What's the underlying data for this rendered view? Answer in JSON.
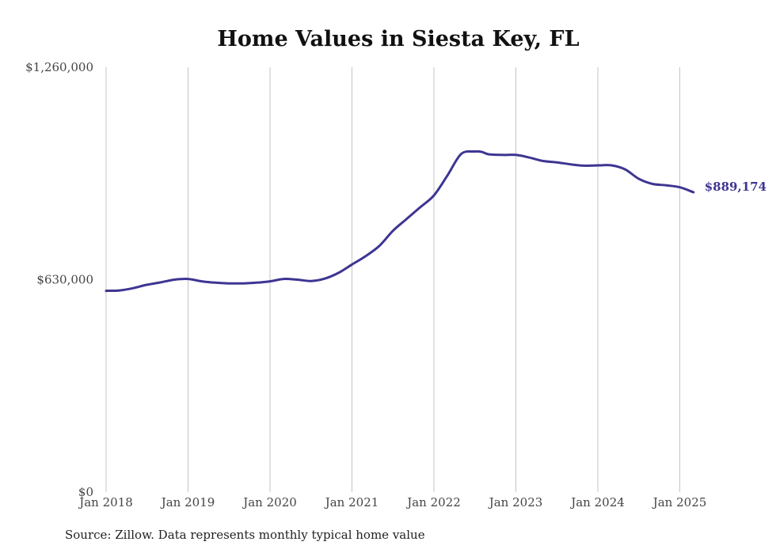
{
  "chart_data": {
    "type": "line",
    "title": "Home Values in Siesta Key, FL",
    "xlabel": "",
    "ylabel": "",
    "ylim": [
      0,
      1260000
    ],
    "y_ticks": [
      0,
      630000,
      1260000
    ],
    "y_tick_labels": [
      "$0",
      "$630,000",
      "$1,260,000"
    ],
    "x_range": [
      "2018-01",
      "2025-03"
    ],
    "x_ticks": [
      "2018-01",
      "2019-01",
      "2020-01",
      "2021-01",
      "2022-01",
      "2023-01",
      "2024-01",
      "2025-01"
    ],
    "x_tick_labels": [
      "Jan 2018",
      "Jan 2019",
      "Jan 2020",
      "Jan 2021",
      "Jan 2022",
      "Jan 2023",
      "Jan 2024",
      "Jan 2025"
    ],
    "grid": "vertical",
    "line_color": "#3d3592",
    "series": [
      {
        "name": "",
        "points": [
          [
            "2018-01",
            597000
          ],
          [
            "2018-03",
            598000
          ],
          [
            "2018-05",
            605000
          ],
          [
            "2018-07",
            615000
          ],
          [
            "2018-09",
            622000
          ],
          [
            "2018-11",
            630000
          ],
          [
            "2019-01",
            632000
          ],
          [
            "2019-03",
            625000
          ],
          [
            "2019-05",
            621000
          ],
          [
            "2019-07",
            619000
          ],
          [
            "2019-09",
            619000
          ],
          [
            "2019-11",
            621000
          ],
          [
            "2020-01",
            625000
          ],
          [
            "2020-03",
            632000
          ],
          [
            "2020-05",
            630000
          ],
          [
            "2020-07",
            626000
          ],
          [
            "2020-09",
            633000
          ],
          [
            "2020-11",
            650000
          ],
          [
            "2021-01",
            675000
          ],
          [
            "2021-03",
            700000
          ],
          [
            "2021-05",
            730000
          ],
          [
            "2021-07",
            775000
          ],
          [
            "2021-09",
            810000
          ],
          [
            "2021-11",
            845000
          ],
          [
            "2022-01",
            880000
          ],
          [
            "2022-03",
            940000
          ],
          [
            "2022-05",
            1003000
          ],
          [
            "2022-07",
            1010000
          ],
          [
            "2022-08",
            1009000
          ],
          [
            "2022-09",
            1002000
          ],
          [
            "2022-11",
            1000000
          ],
          [
            "2023-01",
            1000000
          ],
          [
            "2023-03",
            992000
          ],
          [
            "2023-05",
            982000
          ],
          [
            "2023-07",
            978000
          ],
          [
            "2023-09",
            972000
          ],
          [
            "2023-11",
            968000
          ],
          [
            "2024-01",
            969000
          ],
          [
            "2024-03",
            969000
          ],
          [
            "2024-05",
            957000
          ],
          [
            "2024-07",
            929000
          ],
          [
            "2024-09",
            914000
          ],
          [
            "2024-11",
            910000
          ],
          [
            "2025-01",
            904000
          ],
          [
            "2025-03",
            889174
          ]
        ]
      }
    ],
    "end_label": "$889,174"
  },
  "source_note": "Source: Zillow. Data represents monthly typical home value"
}
